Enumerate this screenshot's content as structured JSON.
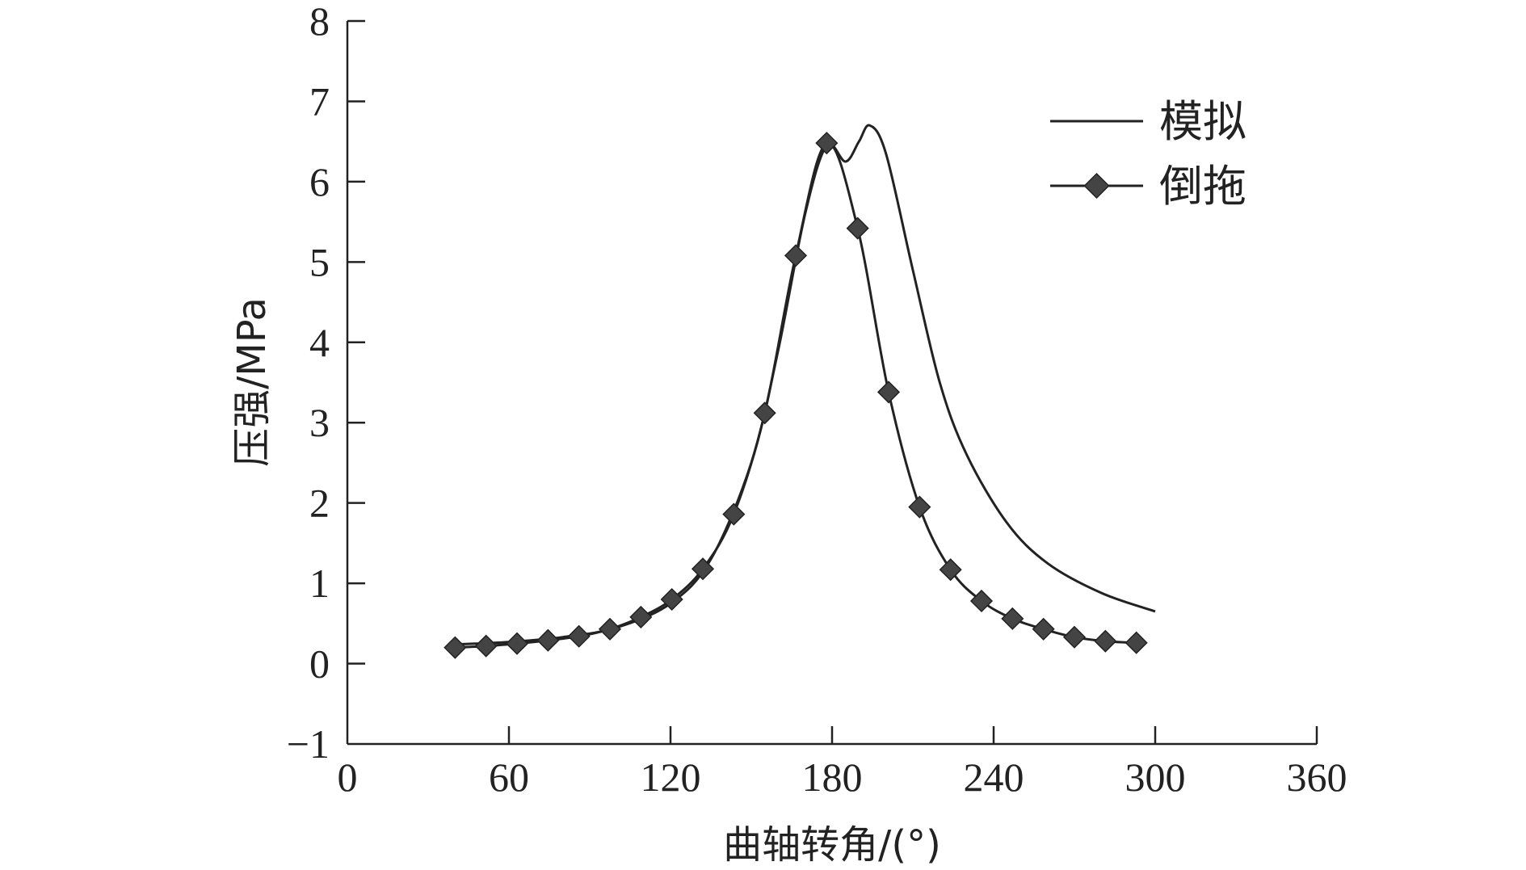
{
  "chart_data": {
    "type": "line",
    "xlabel": "曲轴转角/(°)",
    "ylabel": "压强/MPa",
    "xlim": [
      0,
      360
    ],
    "ylim": [
      -1,
      8
    ],
    "xticks": [
      0,
      60,
      120,
      180,
      240,
      300,
      360
    ],
    "yticks": [
      -1,
      0,
      1,
      2,
      3,
      4,
      5,
      6,
      7,
      8
    ],
    "grid": false,
    "legend_position": "top-right",
    "series": [
      {
        "name": "模拟",
        "marker": "none",
        "color": "#222222",
        "x": [
          40,
          60,
          80,
          100,
          120,
          135,
          150,
          160,
          170,
          178,
          185,
          190,
          194,
          200,
          210,
          220,
          230,
          245,
          260,
          280,
          300
        ],
        "y": [
          0.24,
          0.27,
          0.33,
          0.45,
          0.75,
          1.3,
          2.5,
          3.9,
          5.6,
          6.45,
          6.25,
          6.5,
          6.7,
          6.35,
          4.9,
          3.5,
          2.6,
          1.75,
          1.25,
          0.88,
          0.65
        ]
      },
      {
        "name": "倒拖",
        "marker": "diamond",
        "color": "#444444",
        "x": [
          40,
          51.5,
          63,
          74.5,
          86,
          97.5,
          109,
          120.5,
          132,
          143.5,
          155,
          166.5,
          178,
          189.5,
          201,
          212.5,
          224,
          235.5,
          247,
          258.5,
          270,
          281.5,
          293
        ],
        "y": [
          0.2,
          0.22,
          0.25,
          0.29,
          0.34,
          0.43,
          0.58,
          0.8,
          1.18,
          1.86,
          3.12,
          5.08,
          6.48,
          5.42,
          3.38,
          1.95,
          1.17,
          0.78,
          0.56,
          0.43,
          0.33,
          0.28,
          0.26
        ]
      }
    ]
  }
}
